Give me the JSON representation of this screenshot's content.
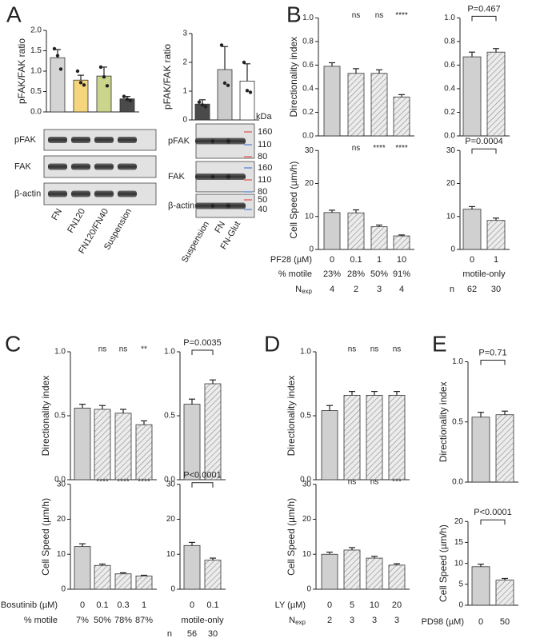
{
  "panel_labels": [
    "A",
    "B",
    "C",
    "D",
    "E"
  ],
  "chart_data": [
    {
      "type": "bar",
      "ylabel": "pFAK/FAK ratio",
      "ylim": [
        0,
        2
      ],
      "yticks": [
        {
          "value": 0,
          "label": "0.0"
        },
        0.5,
        {
          "value": 1,
          "label": "1.0"
        },
        1.5,
        {
          "value": 2,
          "label": "2.0"
        }
      ],
      "values": [
        1.33,
        0.78,
        0.88,
        0.32
      ],
      "errors": [
        0.2,
        0.12,
        0.22,
        0.06
      ],
      "colors": [
        "#d4d4d4",
        "#f6d67c",
        "#cbd58c",
        "#4a4a4a"
      ],
      "hatched": [
        false,
        false,
        false,
        false
      ],
      "points": [
        [
          1.55,
          1.38,
          1.05
        ],
        [
          1.0,
          0.72,
          0.66
        ],
        [
          1.1,
          0.86,
          0.64
        ],
        [
          0.38,
          0.31,
          0.28
        ]
      ]
    },
    {
      "type": "bar",
      "ylabel": "pFAK/FAK ratio",
      "ylim": [
        0,
        3
      ],
      "yticks": [
        0,
        1,
        2,
        3
      ],
      "values": [
        0.55,
        1.75,
        1.35
      ],
      "errors": [
        0.15,
        0.8,
        0.6
      ],
      "colors": [
        "#4a4a4a",
        "#cccccc",
        "#ffffff"
      ],
      "hatched": [
        false,
        false,
        false
      ],
      "points": [
        [
          0.62,
          0.52,
          0.46
        ],
        [
          2.6,
          1.28,
          1.2
        ],
        [
          2.0,
          1.02,
          0.96
        ]
      ]
    },
    {
      "type": "bar",
      "ylabel": "Directionality index",
      "ylim": [
        0,
        1.05
      ],
      "yticks": [
        {
          "value": 0,
          "label": "0.0"
        },
        0.2,
        0.4,
        0.6,
        0.8,
        {
          "value": 1,
          "label": "1.0"
        }
      ],
      "values": [
        0.59,
        0.53,
        0.53,
        0.33
      ],
      "errors": [
        0.03,
        0.04,
        0.03,
        0.02
      ],
      "colors": [
        "#d0d0d0",
        "#e6e6e6",
        "#e6e6e6",
        "#e6e6e6"
      ],
      "hatched": [
        false,
        true,
        true,
        true
      ],
      "significance": [
        null,
        "ns",
        "ns",
        "****"
      ]
    },
    {
      "type": "bar",
      "ylabel": null,
      "ylim": [
        0,
        1.05
      ],
      "yticks": [
        {
          "value": 0,
          "label": "0.0"
        },
        0.2,
        0.4,
        0.6,
        0.8,
        {
          "value": 1,
          "label": "1.0"
        }
      ],
      "values": [
        0.67,
        0.71
      ],
      "errors": [
        0.04,
        0.03
      ],
      "colors": [
        "#d0d0d0",
        "#e6e6e6"
      ],
      "hatched": [
        false,
        true
      ],
      "pvalue": "P=0.467"
    },
    {
      "type": "bar",
      "ylabel": "Cell Speed (µm/h)",
      "ylim": [
        0,
        32
      ],
      "yticks": [
        0,
        10,
        20,
        30
      ],
      "values": [
        11.2,
        11.1,
        6.9,
        4.1
      ],
      "errors": [
        0.7,
        0.9,
        0.5,
        0.3
      ],
      "colors": [
        "#d0d0d0",
        "#e6e6e6",
        "#e6e6e6",
        "#e6e6e6"
      ],
      "hatched": [
        false,
        true,
        true,
        true
      ],
      "significance": [
        null,
        "ns",
        "****",
        "****"
      ]
    },
    {
      "type": "bar",
      "ylabel": null,
      "ylim": [
        0,
        32
      ],
      "yticks": [
        0,
        10,
        20,
        30
      ],
      "values": [
        12.2,
        8.8
      ],
      "errors": [
        0.8,
        0.7
      ],
      "colors": [
        "#d0d0d0",
        "#e6e6e6"
      ],
      "hatched": [
        false,
        true
      ],
      "pvalue": "P=0.0004"
    },
    {
      "type": "bar",
      "ylabel": "Directionality index",
      "ylim": [
        0,
        1.05
      ],
      "yticks": [
        {
          "value": 0,
          "label": "0.0"
        },
        0.5,
        {
          "value": 1,
          "label": "1.0"
        }
      ],
      "values": [
        0.56,
        0.55,
        0.52,
        0.43
      ],
      "errors": [
        0.03,
        0.03,
        0.03,
        0.03
      ],
      "colors": [
        "#d0d0d0",
        "#e6e6e6",
        "#e6e6e6",
        "#e6e6e6"
      ],
      "hatched": [
        false,
        true,
        true,
        true
      ],
      "significance": [
        null,
        "ns",
        "ns",
        "**"
      ]
    },
    {
      "type": "bar",
      "ylabel": null,
      "ylim": [
        0,
        1.05
      ],
      "yticks": [
        {
          "value": 0,
          "label": "0.0"
        },
        0.5,
        {
          "value": 1,
          "label": "1.0"
        }
      ],
      "values": [
        0.59,
        0.75
      ],
      "errors": [
        0.04,
        0.03
      ],
      "colors": [
        "#d0d0d0",
        "#e6e6e6"
      ],
      "hatched": [
        false,
        true
      ],
      "pvalue": "P=0.0035"
    },
    {
      "type": "bar",
      "ylabel": "Cell Speed (µm/h)",
      "ylim": [
        0,
        32
      ],
      "yticks": [
        0,
        10,
        20,
        30
      ],
      "values": [
        12.2,
        6.8,
        4.4,
        3.8
      ],
      "errors": [
        0.8,
        0.4,
        0.3,
        0.2
      ],
      "colors": [
        "#d0d0d0",
        "#e6e6e6",
        "#e6e6e6",
        "#e6e6e6"
      ],
      "hatched": [
        false,
        true,
        true,
        true
      ],
      "significance": [
        null,
        "****",
        "****",
        "****"
      ]
    },
    {
      "type": "bar",
      "ylabel": null,
      "ylim": [
        0,
        32
      ],
      "yticks": [
        0,
        10,
        20,
        30
      ],
      "values": [
        12.5,
        8.3
      ],
      "errors": [
        0.9,
        0.6
      ],
      "colors": [
        "#d0d0d0",
        "#e6e6e6"
      ],
      "hatched": [
        false,
        true
      ],
      "pvalue": "P<0.0001"
    },
    {
      "type": "bar",
      "ylabel": "Directionality index",
      "ylim": [
        0,
        1.05
      ],
      "yticks": [
        {
          "value": 0,
          "label": "0.0"
        },
        0.5,
        {
          "value": 1,
          "label": "1.0"
        }
      ],
      "values": [
        0.54,
        0.66,
        0.66,
        0.66
      ],
      "errors": [
        0.04,
        0.03,
        0.03,
        0.03
      ],
      "colors": [
        "#d0d0d0",
        "#e6e6e6",
        "#e6e6e6",
        "#e6e6e6"
      ],
      "hatched": [
        false,
        true,
        true,
        true
      ],
      "significance": [
        null,
        "ns",
        "ns",
        "ns"
      ]
    },
    {
      "type": "bar",
      "ylabel": "Cell Speed (µm/h)",
      "ylim": [
        0,
        32
      ],
      "yticks": [
        0,
        10,
        20,
        30
      ],
      "values": [
        10,
        11.2,
        8.9,
        6.9
      ],
      "errors": [
        0.6,
        0.7,
        0.5,
        0.4
      ],
      "colors": [
        "#d0d0d0",
        "#e6e6e6",
        "#e6e6e6",
        "#e6e6e6"
      ],
      "hatched": [
        false,
        true,
        true,
        true
      ],
      "significance": [
        null,
        "ns",
        "ns",
        "***"
      ]
    },
    {
      "type": "bar",
      "ylabel": "Directionality index",
      "ylim": [
        0,
        1.05
      ],
      "yticks": [
        {
          "value": 0,
          "label": "0.0"
        },
        0.5,
        {
          "value": 1,
          "label": "1.0"
        }
      ],
      "values": [
        0.54,
        0.56
      ],
      "errors": [
        0.04,
        0.03
      ],
      "colors": [
        "#d0d0d0",
        "#e6e6e6"
      ],
      "hatched": [
        false,
        true
      ],
      "pvalue": "P=0.71"
    },
    {
      "type": "bar",
      "ylabel": "Cell Speed (µm/h)",
      "ylim": [
        0,
        21
      ],
      "yticks": [
        0,
        5,
        10,
        15,
        20
      ],
      "values": [
        9.2,
        6.0
      ],
      "errors": [
        0.6,
        0.4
      ],
      "colors": [
        "#d0d0d0",
        "#e6e6e6"
      ],
      "hatched": [
        false,
        true
      ],
      "pvalue": "P<0.0001"
    }
  ],
  "blots": [
    {
      "rows": [
        "pFAK",
        "FAK",
        "β-actin"
      ],
      "lanes": [
        "FN",
        "FN120",
        "FN120/FN40",
        "Suspension"
      ]
    },
    {
      "rows": [
        "pFAK",
        "FAK",
        "β-actin"
      ],
      "lanes": [
        "Suspension",
        "FN",
        "FN-Glut"
      ],
      "marker_unit": "kDa",
      "markers": [
        160,
        110,
        80,
        160,
        110,
        80,
        50,
        40
      ]
    }
  ],
  "tables": [
    {
      "rows": [
        {
          "label": "PF28 (µM)",
          "cells": [
            0,
            0.1,
            1,
            10
          ]
        },
        {
          "label": "% motile",
          "cells": [
            "23%",
            "28%",
            "50%",
            "91%"
          ]
        },
        {
          "label": "N",
          "sub": "exp",
          "cells": [
            4,
            2,
            3,
            4
          ]
        }
      ]
    },
    {
      "rows": [
        {
          "cells": [
            0,
            1
          ]
        },
        {
          "note": "motile-only"
        },
        {
          "label": "n",
          "cells": [
            62,
            30
          ]
        }
      ]
    },
    {
      "rows": [
        {
          "label": "Bosutinib (µM)",
          "cells": [
            0,
            0.1,
            0.3,
            1
          ]
        },
        {
          "label": "% motile",
          "cells": [
            "7%",
            "50%",
            "78%",
            "87%"
          ]
        }
      ]
    },
    {
      "rows": [
        {
          "cells": [
            0,
            0.1
          ]
        },
        {
          "note": "motile-only"
        },
        {
          "label": "n",
          "cells": [
            56,
            30
          ]
        }
      ]
    },
    {
      "rows": [
        {
          "label": "LY (µM)",
          "cells": [
            0,
            5,
            10,
            20
          ]
        },
        {
          "label": "N",
          "sub": "exp",
          "cells": [
            2,
            3,
            3,
            3
          ]
        }
      ]
    },
    {
      "rows": [
        {
          "label": "PD98 (µM)",
          "cells": [
            0,
            50
          ]
        }
      ]
    }
  ]
}
